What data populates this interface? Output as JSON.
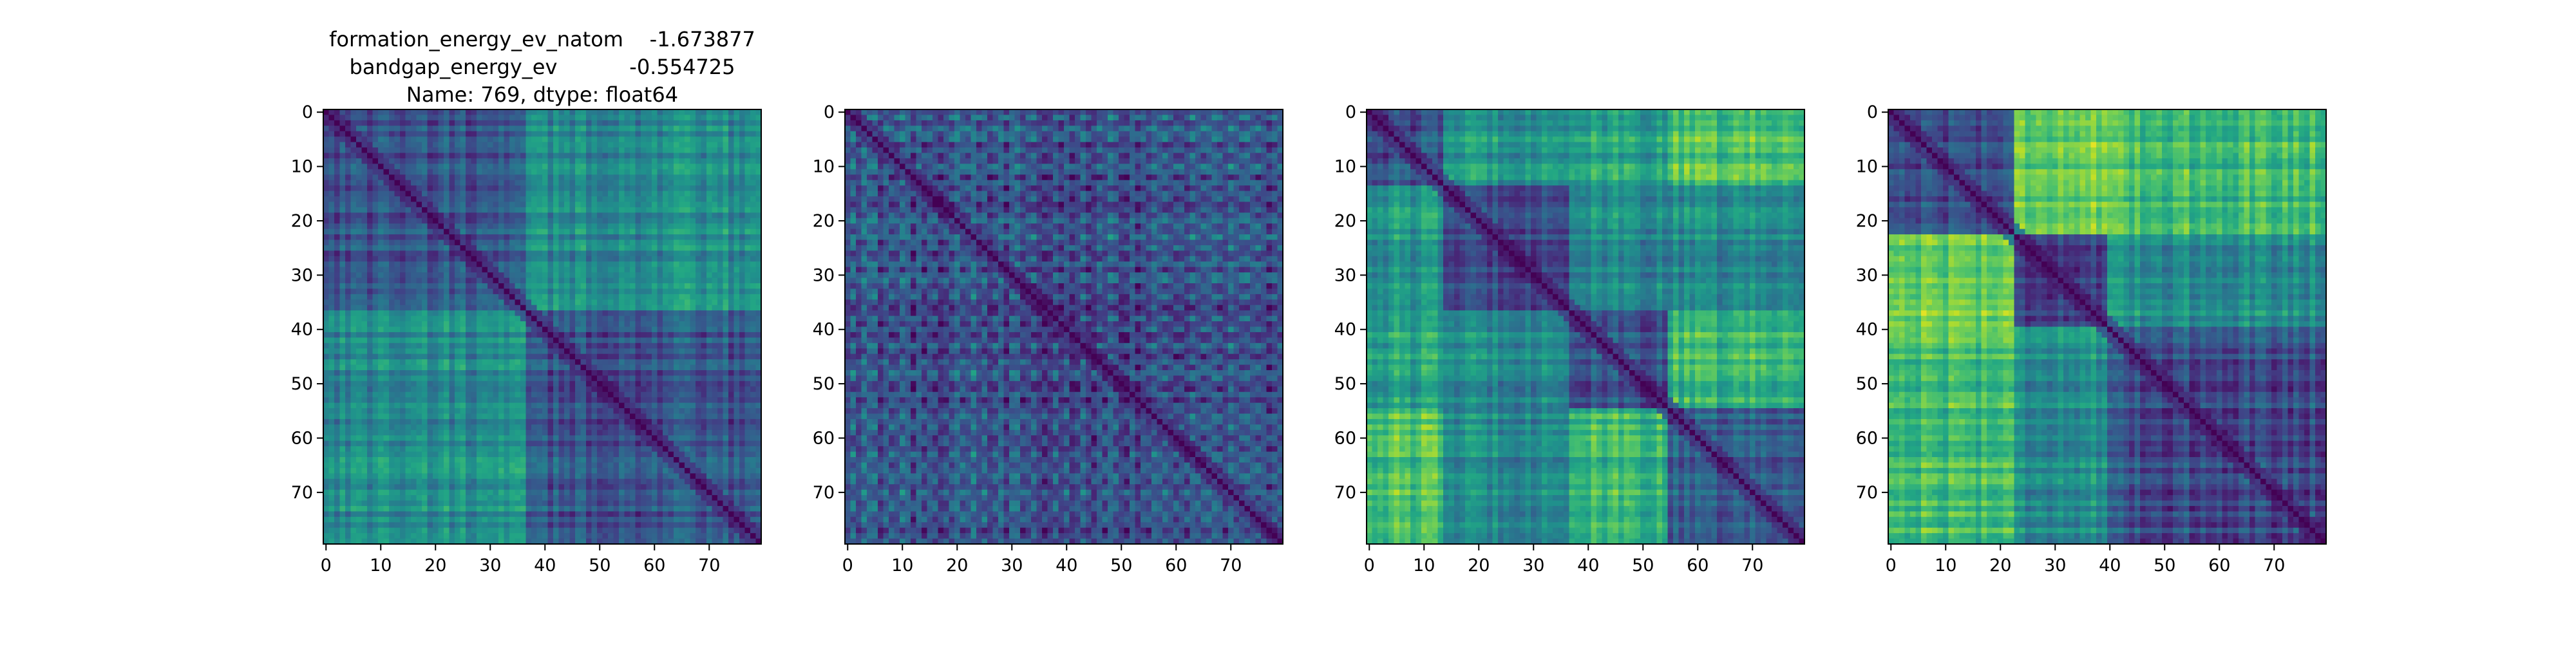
{
  "title_lines": [
    "formation_energy_ev_natom    -1.673877",
    "bandgap_energy_ev           -0.554725",
    "Name: 769, dtype: float64"
  ],
  "chart_data": [
    {
      "type": "heatmap",
      "colormap": "viridis",
      "size": 80,
      "blocks": [
        0,
        37,
        80
      ],
      "x_ticks": [
        0,
        10,
        20,
        30,
        40,
        50,
        60,
        70
      ],
      "y_ticks": [
        0,
        10,
        20,
        30,
        40,
        50,
        60,
        70
      ],
      "xlim": [
        0,
        79
      ],
      "ylim": [
        79,
        0
      ],
      "value_range": [
        0,
        1
      ]
    },
    {
      "type": "heatmap",
      "colormap": "viridis",
      "size": 80,
      "blocks": [
        0,
        80
      ],
      "x_ticks": [
        0,
        10,
        20,
        30,
        40,
        50,
        60,
        70
      ],
      "y_ticks": [
        0,
        10,
        20,
        30,
        40,
        50,
        60,
        70
      ],
      "xlim": [
        0,
        79
      ],
      "ylim": [
        79,
        0
      ],
      "value_range": [
        0,
        1
      ]
    },
    {
      "type": "heatmap",
      "colormap": "viridis",
      "size": 80,
      "blocks": [
        0,
        14,
        37,
        55,
        80
      ],
      "x_ticks": [
        0,
        10,
        20,
        30,
        40,
        50,
        60,
        70
      ],
      "y_ticks": [
        0,
        10,
        20,
        30,
        40,
        50,
        60,
        70
      ],
      "xlim": [
        0,
        79
      ],
      "ylim": [
        79,
        0
      ],
      "value_range": [
        0,
        1
      ]
    },
    {
      "type": "heatmap",
      "colormap": "viridis",
      "size": 80,
      "blocks": [
        0,
        23,
        40,
        80
      ],
      "x_ticks": [
        0,
        10,
        20,
        30,
        40,
        50,
        60,
        70
      ],
      "y_ticks": [
        0,
        10,
        20,
        30,
        40,
        50,
        60,
        70
      ],
      "xlim": [
        0,
        79
      ],
      "ylim": [
        79,
        0
      ],
      "value_range": [
        0,
        1
      ]
    }
  ]
}
